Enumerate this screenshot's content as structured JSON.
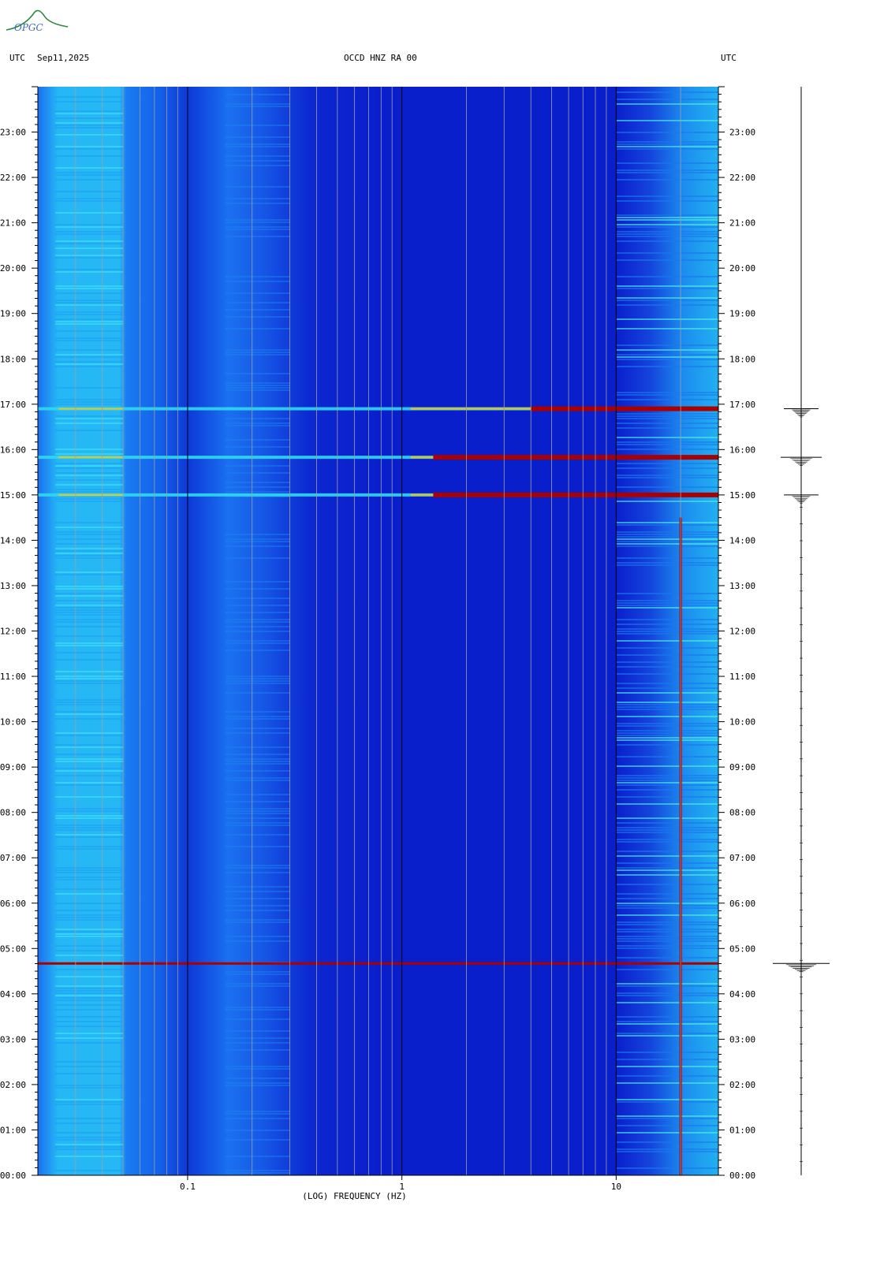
{
  "logo_text": "OPGC",
  "header": {
    "left_tz": "UTC",
    "date": "Sep11,2025",
    "station": "OCCD HNZ RA 00",
    "right_tz": "UTC"
  },
  "colors": {
    "background": "#0a1fd2",
    "band_light": "#1fd0f0",
    "band_mid": "#1a8cf5",
    "event_hot": "#aa0000",
    "event_warm": "#f0c020",
    "grid_thin": "#a0a0a0",
    "grid_major": "#000000"
  },
  "chart_data": {
    "type": "heatmap",
    "title": "OCCD HNZ RA 00",
    "xlabel": "(LOG) FREQUENCY (HZ)",
    "ylabel": "",
    "x_scale": "log",
    "xlim": [
      0.02,
      30
    ],
    "ylim_hours": [
      0,
      24
    ],
    "x_tick_labels": [
      {
        "value": 0.1,
        "label": "0.1"
      },
      {
        "value": 1,
        "label": "1"
      },
      {
        "value": 10,
        "label": "10"
      }
    ],
    "y_tick_labels": [
      {
        "hour": 0,
        "label": "00:00"
      },
      {
        "hour": 1,
        "label": "01:00"
      },
      {
        "hour": 2,
        "label": "02:00"
      },
      {
        "hour": 3,
        "label": "03:00"
      },
      {
        "hour": 4,
        "label": "04:00"
      },
      {
        "hour": 5,
        "label": "05:00"
      },
      {
        "hour": 6,
        "label": "06:00"
      },
      {
        "hour": 7,
        "label": "07:00"
      },
      {
        "hour": 8,
        "label": "08:00"
      },
      {
        "hour": 9,
        "label": "09:00"
      },
      {
        "hour": 10,
        "label": "10:00"
      },
      {
        "hour": 11,
        "label": "11:00"
      },
      {
        "hour": 12,
        "label": "12:00"
      },
      {
        "hour": 13,
        "label": "13:00"
      },
      {
        "hour": 14,
        "label": "14:00"
      },
      {
        "hour": 15,
        "label": "15:00"
      },
      {
        "hour": 16,
        "label": "16:00"
      },
      {
        "hour": 17,
        "label": "17:00"
      },
      {
        "hour": 18,
        "label": "18:00"
      },
      {
        "hour": 19,
        "label": "19:00"
      },
      {
        "hour": 20,
        "label": "20:00"
      },
      {
        "hour": 21,
        "label": "21:00"
      },
      {
        "hour": 22,
        "label": "22:00"
      },
      {
        "hour": 23,
        "label": "23:00"
      }
    ],
    "events": [
      {
        "hour": 15.0,
        "min_freq": 0.02,
        "intensity": "strong"
      },
      {
        "hour": 15.83,
        "min_freq": 0.02,
        "intensity": "strong"
      },
      {
        "hour": 16.9,
        "min_freq": 0.02,
        "intensity": "medium"
      },
      {
        "hour": 4.67,
        "min_freq": 0.02,
        "intensity": "line"
      }
    ],
    "noise_line_freq": 20,
    "trace_events_hours": [
      15.0,
      15.83,
      16.9,
      4.67
    ]
  }
}
